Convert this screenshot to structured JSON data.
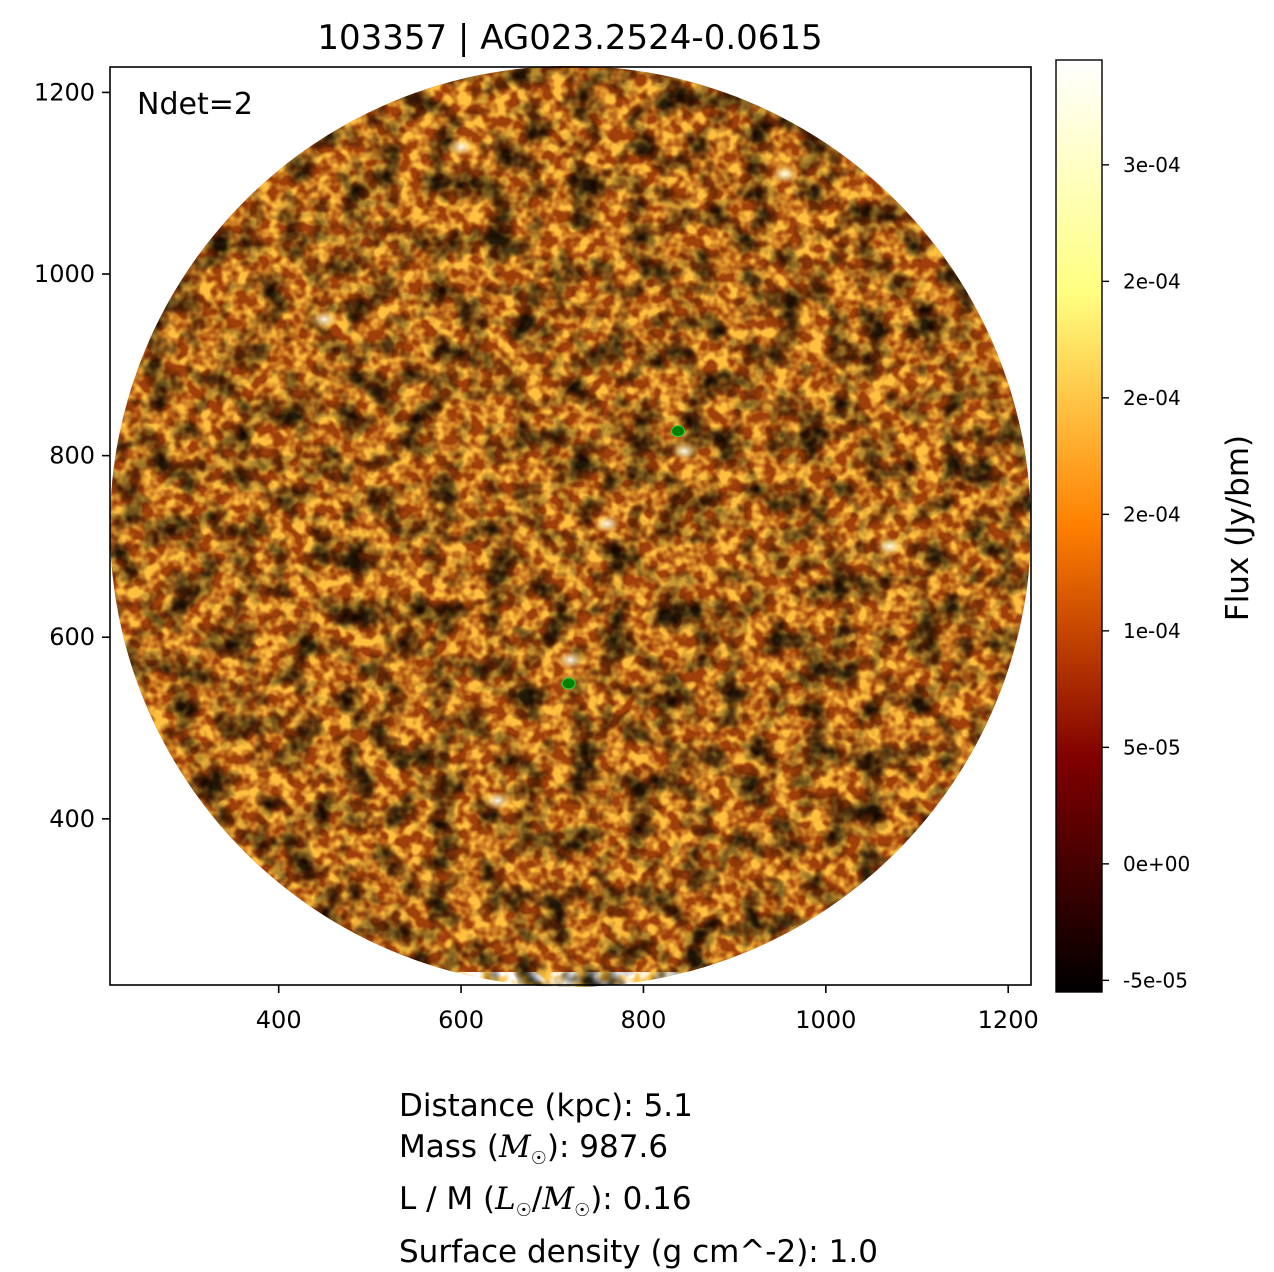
{
  "title": "103357 | AG023.2524-0.0615",
  "annotation": "Ndet=2",
  "chart_data": {
    "type": "heatmap",
    "title": "103357 | AG023.2524-0.0615",
    "xlim": [
      215,
      1225
    ],
    "ylim": [
      217,
      1228
    ],
    "x_ticks": [
      400,
      600,
      800,
      1000,
      1200
    ],
    "x_tick_labels": [
      "400",
      "600",
      "800",
      "1000",
      "1200"
    ],
    "y_ticks": [
      400,
      600,
      800,
      1000,
      1200
    ],
    "y_tick_labels": [
      "400",
      "600",
      "800",
      "1000",
      "1200"
    ],
    "xlabel": "",
    "ylabel": "",
    "image_footprint": {
      "shape": "circle",
      "center": [
        720,
        722
      ],
      "radius": 505
    },
    "colormap": "afmhot",
    "colormap_stops": [
      "#000000",
      "#800000",
      "#ff8000",
      "#ffff80",
      "#ffffff"
    ],
    "color_range": [
      -5.5e-05,
      0.000345
    ],
    "colorbar": {
      "label": "Flux (Jy/bm)",
      "ticks": [
        -5e-05,
        0.0,
        5e-05,
        0.0001,
        0.00015,
        0.0002,
        0.00025,
        0.0003
      ],
      "tick_labels": [
        "-5e-05",
        "0e+00",
        "5e-05",
        "1e-04",
        "2e-04",
        "2e-04",
        "2e-04",
        "3e-04"
      ]
    },
    "detections": [
      {
        "x": 838,
        "y": 827,
        "color": "#008000"
      },
      {
        "x": 718,
        "y": 549,
        "color": "#008000"
      }
    ],
    "bright_spots": [
      {
        "x": 600,
        "y": 1140
      },
      {
        "x": 955,
        "y": 1110
      },
      {
        "x": 760,
        "y": 725
      },
      {
        "x": 845,
        "y": 805
      },
      {
        "x": 720,
        "y": 575
      },
      {
        "x": 1070,
        "y": 700
      },
      {
        "x": 450,
        "y": 950
      },
      {
        "x": 640,
        "y": 420
      }
    ]
  },
  "info": {
    "distance": {
      "label": "Distance (kpc): ",
      "value": "5.1"
    },
    "mass": {
      "label_pre": "Mass (",
      "sym": "M",
      "label_post": "): ",
      "value": "987.6"
    },
    "lm": {
      "label_pre": "L / M (",
      "sym1": "L",
      "sep": "/",
      "sym2": "M",
      "label_post": "): ",
      "value": "0.16"
    },
    "surface_density": {
      "label": "Surface density (g cm^-2): ",
      "value": "1.0"
    }
  }
}
